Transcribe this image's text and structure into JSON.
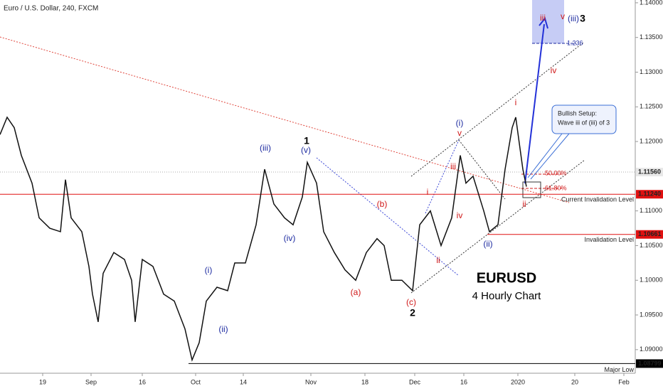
{
  "chart_data": {
    "type": "line",
    "title": "Euro / U.S. Dollar, 240, FXCM",
    "symbol": "EURUSD",
    "subtitle": "4 Hourly Chart",
    "callout": [
      "Bullish Setup:",
      "Wave iii of (iii) of 3"
    ],
    "annotations": [
      "(iii)",
      "(v)",
      "1",
      "(iv)",
      "(i)",
      "(ii)",
      "(b)",
      "(a)",
      "(c)",
      "2",
      "(i)",
      "v",
      "iii",
      "i",
      "iv",
      "ii",
      "(ii)",
      "i",
      "ii",
      "iv",
      "iii",
      "v",
      "(iii)",
      "3",
      "50.00%",
      "61.80%",
      "1.236"
    ],
    "x": [
      0,
      10,
      20,
      30,
      45,
      55,
      70,
      85,
      92,
      100,
      115,
      125,
      130,
      138,
      145,
      160,
      175,
      185,
      190,
      200,
      215,
      230,
      245,
      260,
      270,
      280,
      290,
      305,
      320,
      330,
      345,
      360,
      372,
      385,
      400,
      412,
      425,
      432,
      445,
      455,
      470,
      485,
      500,
      515,
      530,
      540,
      550,
      565,
      580,
      590,
      605,
      620,
      635,
      647,
      655,
      665,
      680,
      688,
      700,
      710,
      720,
      725,
      735,
      740
    ],
    "series": [
      {
        "name": "EURUSD",
        "color": "#111111",
        "values": [
          1.121,
          1.1235,
          1.122,
          1.118,
          1.114,
          1.109,
          1.1075,
          1.107,
          1.1145,
          1.109,
          1.107,
          1.102,
          1.098,
          1.094,
          1.101,
          1.104,
          1.103,
          1.1,
          1.094,
          1.103,
          1.102,
          1.098,
          1.097,
          1.093,
          1.0885,
          1.091,
          1.097,
          1.099,
          1.0985,
          1.1025,
          1.1025,
          1.108,
          1.116,
          1.111,
          1.109,
          1.108,
          1.112,
          1.117,
          1.114,
          1.107,
          1.104,
          1.1015,
          1.1,
          1.104,
          1.106,
          1.105,
          1.1,
          1.1,
          1.0985,
          1.108,
          1.11,
          1.105,
          1.109,
          1.118,
          1.114,
          1.115,
          1.11,
          1.107,
          1.108,
          1.116,
          1.122,
          1.1235,
          1.116,
          1.1135
        ]
      }
    ],
    "xlim": [
      0,
      893
    ],
    "xticks": [
      {
        "value": 60,
        "label": "19"
      },
      {
        "value": 128,
        "label": "Sep"
      },
      {
        "value": 200,
        "label": "16"
      },
      {
        "value": 275,
        "label": "Oct"
      },
      {
        "value": 342,
        "label": "14"
      },
      {
        "value": 437,
        "label": "Nov"
      },
      {
        "value": 513,
        "label": "18"
      },
      {
        "value": 583,
        "label": "Dec"
      },
      {
        "value": 652,
        "label": "16"
      },
      {
        "value": 728,
        "label": "2020"
      },
      {
        "value": 808,
        "label": "20"
      },
      {
        "value": 877,
        "label": "Feb"
      }
    ],
    "ylim": [
      1.0866,
      1.1404
    ],
    "yticks": [
      {
        "value": 1.14,
        "label": "1.14000"
      },
      {
        "value": 1.135,
        "label": "1.13500"
      },
      {
        "value": 1.13,
        "label": "1.13000"
      },
      {
        "value": 1.125,
        "label": "1.12500"
      },
      {
        "value": 1.12,
        "label": "1.12000"
      },
      {
        "value": 1.11,
        "label": "1.11000"
      },
      {
        "value": 1.105,
        "label": "1.10500"
      },
      {
        "value": 1.1,
        "label": "1.10000"
      },
      {
        "value": 1.095,
        "label": "1.09500"
      },
      {
        "value": 1.09,
        "label": "1.09000"
      }
    ],
    "levels": [
      {
        "value": 1.1156,
        "label": "1.11560",
        "color": "#e8e8e8",
        "text_color": "#000000"
      },
      {
        "value": 1.1124,
        "label": "1.11240",
        "color": "#e01010",
        "text_color": "#ffffff",
        "name": "Current Invalidation Level"
      },
      {
        "value": 1.10661,
        "label": "1.10661",
        "color": "#e01010",
        "text_color": "#ffffff",
        "name": "Invalidation Level"
      },
      {
        "value": 1.08799,
        "label": "1.08799",
        "color": "#000000",
        "text_color": "#ffffff",
        "name": "Major Low"
      }
    ]
  }
}
